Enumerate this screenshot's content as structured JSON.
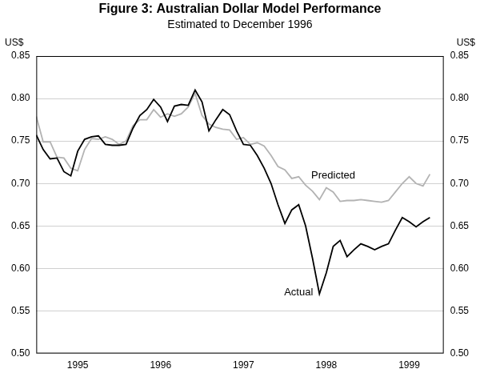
{
  "chart_data": {
    "type": "line",
    "title": "Figure 3: Australian Dollar Model Performance",
    "subtitle": "Estimated to December 1996",
    "ylabel": "US$",
    "y2label": "US$",
    "categories": [
      null,
      null,
      null,
      null,
      null,
      null,
      "1995",
      null,
      null,
      null,
      null,
      null,
      null,
      null,
      null,
      null,
      null,
      null,
      "1996",
      null,
      null,
      null,
      null,
      null,
      null,
      null,
      null,
      null,
      null,
      null,
      "1997",
      null,
      null,
      null,
      null,
      null,
      null,
      null,
      null,
      null,
      null,
      null,
      "1998",
      null,
      null,
      null,
      null,
      null,
      null,
      null,
      null,
      null,
      null,
      null,
      "1999",
      null,
      null,
      null,
      null,
      null
    ],
    "series": [
      {
        "name": "Actual",
        "color": "#000000",
        "values": [
          0.757,
          0.74,
          0.729,
          0.73,
          0.714,
          0.709,
          0.738,
          0.752,
          0.755,
          0.756,
          0.746,
          0.745,
          0.745,
          0.746,
          0.765,
          0.78,
          0.787,
          0.799,
          0.79,
          0.773,
          0.791,
          0.793,
          0.792,
          0.81,
          0.796,
          0.762,
          0.775,
          0.787,
          0.781,
          0.762,
          0.746,
          0.745,
          0.733,
          0.718,
          0.7,
          0.675,
          0.653,
          0.669,
          0.675,
          0.65,
          0.612,
          0.57,
          0.595,
          0.626,
          0.633,
          0.614,
          0.622,
          0.629,
          0.626,
          0.622,
          0.626,
          0.629,
          0.645,
          0.66,
          0.655,
          0.649,
          0.655,
          0.66,
          null,
          null
        ]
      },
      {
        "name": "Predicted",
        "color": "#b3b3b3",
        "values": [
          0.779,
          0.749,
          0.749,
          0.731,
          0.73,
          0.718,
          0.715,
          0.74,
          0.753,
          0.752,
          0.755,
          0.752,
          0.746,
          0.75,
          0.768,
          0.775,
          0.775,
          0.787,
          0.778,
          0.782,
          0.779,
          0.782,
          0.79,
          0.806,
          0.78,
          0.77,
          0.766,
          0.764,
          0.763,
          0.752,
          0.754,
          0.746,
          0.748,
          0.744,
          0.733,
          0.72,
          0.716,
          0.706,
          0.708,
          0.698,
          0.691,
          0.681,
          0.695,
          0.69,
          0.679,
          0.68,
          0.68,
          0.681,
          0.68,
          0.679,
          0.678,
          0.68,
          0.69,
          0.7,
          0.708,
          0.7,
          0.697,
          0.711,
          null,
          null
        ]
      }
    ],
    "ylim": [
      0.5,
      0.85
    ],
    "yticks": [
      {
        "value": 0.5,
        "label": "0.50"
      },
      0.55,
      {
        "value": 0.6,
        "label": "0.60"
      },
      0.65,
      {
        "value": 0.7,
        "label": "0.70"
      },
      0.75,
      {
        "value": 0.8,
        "label": "0.80"
      },
      0.85
    ],
    "y2lim": [
      0.5,
      0.85
    ],
    "y2ticks": [
      {
        "value": 0.5,
        "label": "0.50"
      },
      0.55,
      {
        "value": 0.6,
        "label": "0.60"
      },
      0.65,
      {
        "value": 0.7,
        "label": "0.70"
      },
      0.75,
      {
        "value": 0.8,
        "label": "0.80"
      },
      0.85
    ],
    "grid": true
  }
}
